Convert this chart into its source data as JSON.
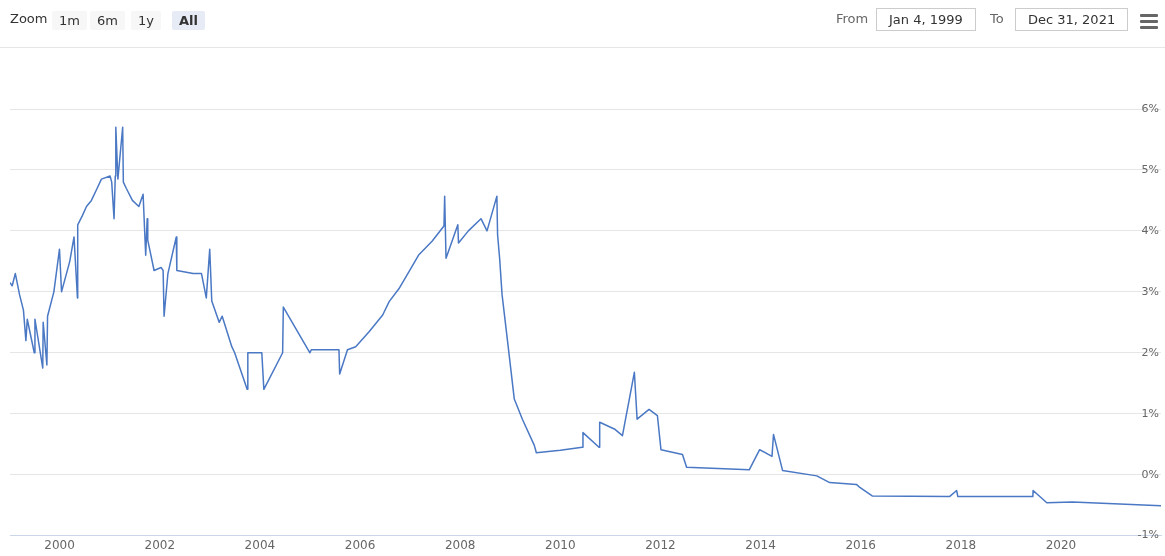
{
  "chart_data": {
    "type": "line",
    "color": "#4a78c4",
    "x": [
      "1999-01-04",
      "1999-01-20",
      "1999-02-12",
      "1999-03-15",
      "1999-04-12",
      "1999-04-30",
      "1999-05-10",
      "1999-06-30",
      "1999-07-05",
      "1999-08-31",
      "1999-09-03",
      "1999-09-30",
      "1999-10-05",
      "1999-11-20",
      "1999-12-31",
      "2000-01-15",
      "2000-03-15",
      "2000-04-15",
      "2000-05-10",
      "2000-05-12",
      "2000-06-15",
      "2000-07-15",
      "2000-08-20",
      "2000-10-01",
      "2000-11-01",
      "2001-01-03",
      "2001-01-15",
      "2001-02-01",
      "2001-02-10",
      "2001-02-14",
      "2001-03-01",
      "2001-04-05",
      "2001-04-10",
      "2001-05-01",
      "2001-06-15",
      "2001-08-01",
      "2001-09-01",
      "2001-09-20",
      "2001-10-01",
      "2001-10-05",
      "2001-11-20",
      "2002-01-10",
      "2002-01-25",
      "2002-02-01",
      "2002-03-01",
      "2002-05-01",
      "2002-05-05",
      "2002-09-01",
      "2002-11-01",
      "2002-12-06",
      "2002-12-31",
      "2003-01-15",
      "2003-03-10",
      "2003-04-01",
      "2003-06-10",
      "2003-07-01",
      "2003-09-30",
      "2003-10-05",
      "2004-01-15",
      "2004-01-30",
      "2004-06-15",
      "2004-06-20",
      "2004-12-31",
      "2005-01-10",
      "2005-07-31",
      "2005-08-05",
      "2005-10-01",
      "2005-11-30",
      "2006-03-06",
      "2006-06-15",
      "2006-08-01",
      "2006-10-11",
      "2006-12-24",
      "2007-03-06",
      "2007-06-10",
      "2007-09-05",
      "2007-09-10",
      "2007-09-20",
      "2007-12-15",
      "2007-12-20",
      "2008-03-01",
      "2008-06-01",
      "2008-07-15",
      "2008-09-25",
      "2008-09-30",
      "2008-10-15",
      "2008-11-02",
      "2008-12-15",
      "2009-01-30",
      "2009-03-30",
      "2009-06-25",
      "2009-07-10",
      "2010-01-01",
      "2010-06-10",
      "2010-06-15",
      "2010-10-10",
      "2010-10-15",
      "2011-01-30",
      "2011-03-30",
      "2011-06-25",
      "2011-07-15",
      "2011-10-10",
      "2011-12-10",
      "2012-01-05",
      "2012-06-10",
      "2012-07-10",
      "2013-10-10",
      "2013-12-25",
      "2014-03-25",
      "2014-04-05",
      "2014-06-10",
      "2015-02-15",
      "2015-05-20",
      "2015-12-01",
      "2015-12-26",
      "2016-03-25",
      "2017-10-10",
      "2017-12-01",
      "2017-12-10",
      "2019-06-10",
      "2019-06-12",
      "2019-09-20",
      "2020-03-25",
      "2021-12-31"
    ],
    "values": [
      3.15,
      3.1,
      3.3,
      2.95,
      2.7,
      2.2,
      2.55,
      2.0,
      2.55,
      1.75,
      2.5,
      1.8,
      2.6,
      3.0,
      3.7,
      3.0,
      3.5,
      3.9,
      2.9,
      4.1,
      4.25,
      4.4,
      4.5,
      4.7,
      4.85,
      4.9,
      4.8,
      4.2,
      4.9,
      5.7,
      4.85,
      5.7,
      4.8,
      4.7,
      4.5,
      4.4,
      4.6,
      3.6,
      4.2,
      3.85,
      3.35,
      3.4,
      3.35,
      2.6,
      3.3,
      3.9,
      3.35,
      3.3,
      3.3,
      2.9,
      3.7,
      2.85,
      2.5,
      2.6,
      2.1,
      2.0,
      1.4,
      2.0,
      2.0,
      1.4,
      2.0,
      2.75,
      2.0,
      2.05,
      2.05,
      1.65,
      2.05,
      2.1,
      2.34,
      2.62,
      2.84,
      3.05,
      3.33,
      3.61,
      3.83,
      4.08,
      4.57,
      3.55,
      4.1,
      3.8,
      4.0,
      4.2,
      4.0,
      4.57,
      3.94,
      3.55,
      2.95,
      2.13,
      1.24,
      0.91,
      0.48,
      0.36,
      0.4,
      0.45,
      0.69,
      0.45,
      0.86,
      0.75,
      0.64,
      1.68,
      0.91,
      1.07,
      0.97,
      0.41,
      0.33,
      0.12,
      0.08,
      0.41,
      0.3,
      0.66,
      0.07,
      -0.02,
      -0.13,
      -0.16,
      -0.21,
      -0.35,
      -0.36,
      -0.26,
      -0.36,
      -0.36,
      -0.26,
      -0.46,
      -0.45,
      -0.51
    ],
    "xlim": [
      "1999-01-04",
      "2021-12-31"
    ],
    "xticks": [
      {
        "value": "2000",
        "label": "2000"
      },
      {
        "value": "2002",
        "label": "2002"
      },
      {
        "value": "2004",
        "label": "2004"
      },
      {
        "value": "2006",
        "label": "2006"
      },
      {
        "value": "2008",
        "label": "2008"
      },
      {
        "value": "2010",
        "label": "2010"
      },
      {
        "value": "2012",
        "label": "2012"
      },
      {
        "value": "2014",
        "label": "2014"
      },
      {
        "value": "2016",
        "label": "2016"
      },
      {
        "value": "2018",
        "label": "2018"
      },
      {
        "value": "2020",
        "label": "2020"
      }
    ],
    "ylim": [
      -1,
      6
    ],
    "yticks": [
      {
        "value": -1,
        "label": "-1%"
      },
      {
        "value": 0,
        "label": "0%"
      },
      {
        "value": 1,
        "label": "1%"
      },
      {
        "value": 2,
        "label": "2%"
      },
      {
        "value": 3,
        "label": "3%"
      },
      {
        "value": 4,
        "label": "4%"
      },
      {
        "value": 5,
        "label": "5%"
      },
      {
        "value": 6,
        "label": "6%"
      }
    ],
    "grid": "y",
    "marker": "none",
    "line_style": "solid",
    "annotations": [
      "Zoom",
      "1m",
      "6m",
      "1y",
      "All",
      "From",
      "Jan 4, 1999",
      "To",
      "Dec 31, 2021"
    ]
  }
}
